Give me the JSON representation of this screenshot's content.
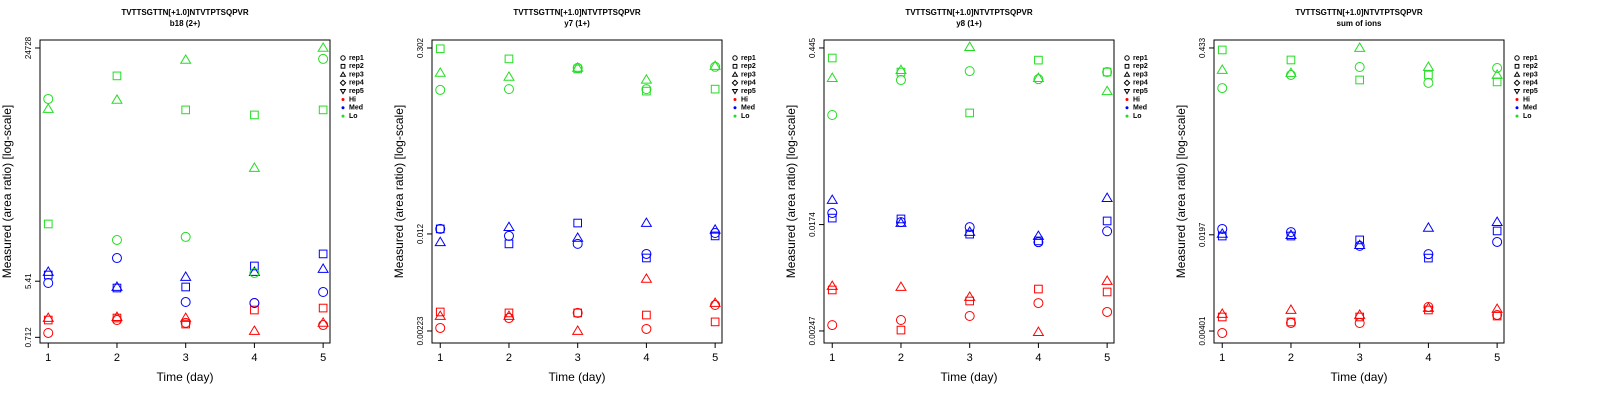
{
  "chart_data": [
    {
      "type": "scatter",
      "title": "TVTTSGTTN[+1.0]NTVTPTSQPVR",
      "subtitle": "b18 (2+)",
      "xlabel": "Time (day)",
      "ylabel": "Measured (area ratio) [log-scale]",
      "log_y": true,
      "x": [
        1,
        2,
        3,
        4,
        5
      ],
      "xlim": [
        0.88,
        5.1
      ],
      "xticks": [
        1,
        2,
        3,
        4,
        5
      ],
      "ylim": [
        0.58,
        33000
      ],
      "yticks": [
        0.712,
        5.41,
        24728
      ],
      "reps": [
        {
          "name": "rep1",
          "shape": "circle"
        },
        {
          "name": "rep2",
          "shape": "square"
        },
        {
          "name": "rep3",
          "shape": "triangle"
        },
        {
          "name": "rep4",
          "shape": "diamond"
        },
        {
          "name": "rep5",
          "shape": "triangle-down"
        }
      ],
      "groups": [
        {
          "name": "Hi",
          "color": "#ff0000",
          "reps": [
            [
              0.833,
              1.33,
              1.2,
              2.46,
              1.11
            ],
            [
              1.33,
              1.43,
              1.15,
              1.91,
              2.05
            ],
            [
              1.43,
              1.48,
              1.43,
              0.895,
              1.2
            ]
          ]
        },
        {
          "name": "Med",
          "color": "#0000ff",
          "reps": [
            [
              5.07,
              12.5,
              2.55,
              2.46,
              3.66
            ],
            [
              6.77,
              4.23,
              4.39,
              9.38,
              14.5
            ],
            [
              7.56,
              4.39,
              6.3,
              7.56,
              8.42
            ]
          ]
        },
        {
          "name": "Lo",
          "color": "#22dd22",
          "reps": [
            [
              3920,
              24,
              26.8,
              7.29,
              16650
            ],
            [
              42.8,
              9020,
              2640,
              2200,
              2640
            ],
            [
              2730,
              3790,
              16080,
              324,
              24800
            ]
          ]
        }
      ]
    },
    {
      "type": "scatter",
      "title": "TVTTSGTTN[+1.0]NTVTPTSQPVR",
      "subtitle": "y7 (1+)",
      "xlabel": "Time (day)",
      "ylabel": "Measured (area ratio) [log-scale]",
      "log_y": true,
      "x": [
        1,
        2,
        3,
        4,
        5
      ],
      "xlim": [
        0.88,
        5.1
      ],
      "xticks": [
        1,
        2,
        3,
        4,
        5
      ],
      "ylim": [
        0.00181,
        0.347
      ],
      "yticks": [
        0.00223,
        0.012,
        0.302
      ],
      "reps": [
        {
          "name": "rep1",
          "shape": "circle"
        },
        {
          "name": "rep2",
          "shape": "square"
        },
        {
          "name": "rep3",
          "shape": "triangle"
        },
        {
          "name": "rep4",
          "shape": "diamond"
        },
        {
          "name": "rep5",
          "shape": "triangle-down"
        }
      ],
      "groups": [
        {
          "name": "Hi",
          "color": "#ff0000",
          "reps": [
            [
              0.00235,
              0.00279,
              0.00305,
              0.00231,
              0.0035
            ],
            [
              0.0031,
              0.00305,
              0.00305,
              0.00294,
              0.00261
            ],
            [
              0.00289,
              0.00289,
              0.00223,
              0.0055,
              0.00362
            ]
          ]
        },
        {
          "name": "Med",
          "color": "#0000ff",
          "reps": [
            [
              0.0131,
              0.0116,
              0.0101,
              0.00848,
              0.0122
            ],
            [
              0.0131,
              0.0101,
              0.0145,
              0.00791,
              0.0116
            ],
            [
              0.0104,
              0.0135,
              0.0112,
              0.0145,
              0.0129
            ]
          ]
        },
        {
          "name": "Lo",
          "color": "#22dd22",
          "reps": [
            [
              0.146,
              0.148,
              0.214,
              0.148,
              0.218
            ],
            [
              0.298,
              0.25,
              0.21,
              0.143,
              0.148
            ],
            [
              0.196,
              0.183,
              0.214,
              0.174,
              0.221
            ]
          ]
        }
      ]
    },
    {
      "type": "scatter",
      "title": "TVTTSGTTN[+1.0]NTVTPTSQPVR",
      "subtitle": "y8 (1+)",
      "xlabel": "Time (day)",
      "ylabel": "Measured (area ratio) [log-scale]",
      "log_y": true,
      "x": [
        1,
        2,
        3,
        4,
        5
      ],
      "xlim": [
        0.88,
        5.1
      ],
      "xticks": [
        1,
        2,
        3,
        4,
        5
      ],
      "ylim": [
        0.00198,
        0.515
      ],
      "yticks": [
        0.00247,
        0.0174,
        0.445
      ],
      "reps": [
        {
          "name": "rep1",
          "shape": "circle"
        },
        {
          "name": "rep2",
          "shape": "square"
        },
        {
          "name": "rep3",
          "shape": "triangle"
        },
        {
          "name": "rep4",
          "shape": "diamond"
        },
        {
          "name": "rep5",
          "shape": "triangle-down"
        }
      ],
      "groups": [
        {
          "name": "Hi",
          "color": "#ff0000",
          "reps": [
            [
              0.00275,
              0.00302,
              0.00325,
              0.00412,
              0.0035
            ],
            [
              0.00524,
              0.00251,
              0.00428,
              0.00533,
              0.00505
            ],
            [
              0.00563,
              0.00553,
              0.00461,
              0.00242,
              0.00618
            ]
          ]
        },
        {
          "name": "Med",
          "color": "#0000ff",
          "reps": [
            [
              0.0215,
              0.0182,
              0.0166,
              0.0126,
              0.0154
            ],
            [
              0.0196,
              0.0193,
              0.0146,
              0.0129,
              0.0186
            ],
            [
              0.0273,
              0.0179,
              0.0152,
              0.0141,
              0.0283
            ]
          ]
        },
        {
          "name": "Lo",
          "color": "#22dd22",
          "reps": [
            [
              0.13,
              0.247,
              0.291,
              0.251,
              0.286
            ],
            [
              0.37,
              0.286,
              0.135,
              0.356,
              0.286
            ],
            [
              0.256,
              0.296,
              0.452,
              0.256,
              0.201
            ]
          ]
        }
      ]
    },
    {
      "type": "scatter",
      "title": "TVTTSGTTN[+1.0]NTVTPTSQPVR",
      "subtitle": "sum of ions",
      "xlabel": "Time (day)",
      "ylabel": "Measured (area ratio) [log-scale]",
      "log_y": true,
      "x": [
        1,
        2,
        3,
        4,
        5
      ],
      "xlim": [
        0.88,
        5.1
      ],
      "xticks": [
        1,
        2,
        3,
        4,
        5
      ],
      "ylim": [
        0.00329,
        0.494
      ],
      "yticks": [
        0.00401,
        0.0197,
        0.433
      ],
      "reps": [
        {
          "name": "rep1",
          "shape": "circle"
        },
        {
          "name": "rep2",
          "shape": "square"
        },
        {
          "name": "rep3",
          "shape": "triangle"
        },
        {
          "name": "rep4",
          "shape": "diamond"
        },
        {
          "name": "rep5",
          "shape": "triangle-down"
        }
      ],
      "groups": [
        {
          "name": "Hi",
          "color": "#ff0000",
          "reps": [
            [
              0.00388,
              0.00458,
              0.00458,
              0.00597,
              0.00523
            ],
            [
              0.00506,
              0.00466,
              0.00506,
              0.00568,
              0.00514
            ],
            [
              0.00532,
              0.00568,
              0.00523,
              0.00587,
              0.00577
            ]
          ]
        },
        {
          "name": "Med",
          "color": "#0000ff",
          "reps": [
            [
              0.0217,
              0.0206,
              0.0164,
              0.0143,
              0.0175
            ],
            [
              0.0193,
              0.0193,
              0.0181,
              0.0134,
              0.021
            ],
            [
              0.02,
              0.0196,
              0.0166,
              0.0221,
              0.0243
            ]
          ]
        },
        {
          "name": "Lo",
          "color": "#22dd22",
          "reps": [
            [
              0.223,
              0.277,
              0.316,
              0.243,
              0.311
            ],
            [
              0.419,
              0.355,
              0.255,
              0.277,
              0.247
            ],
            [
              0.301,
              0.286,
              0.433,
              0.316,
              0.277
            ]
          ]
        }
      ]
    }
  ]
}
